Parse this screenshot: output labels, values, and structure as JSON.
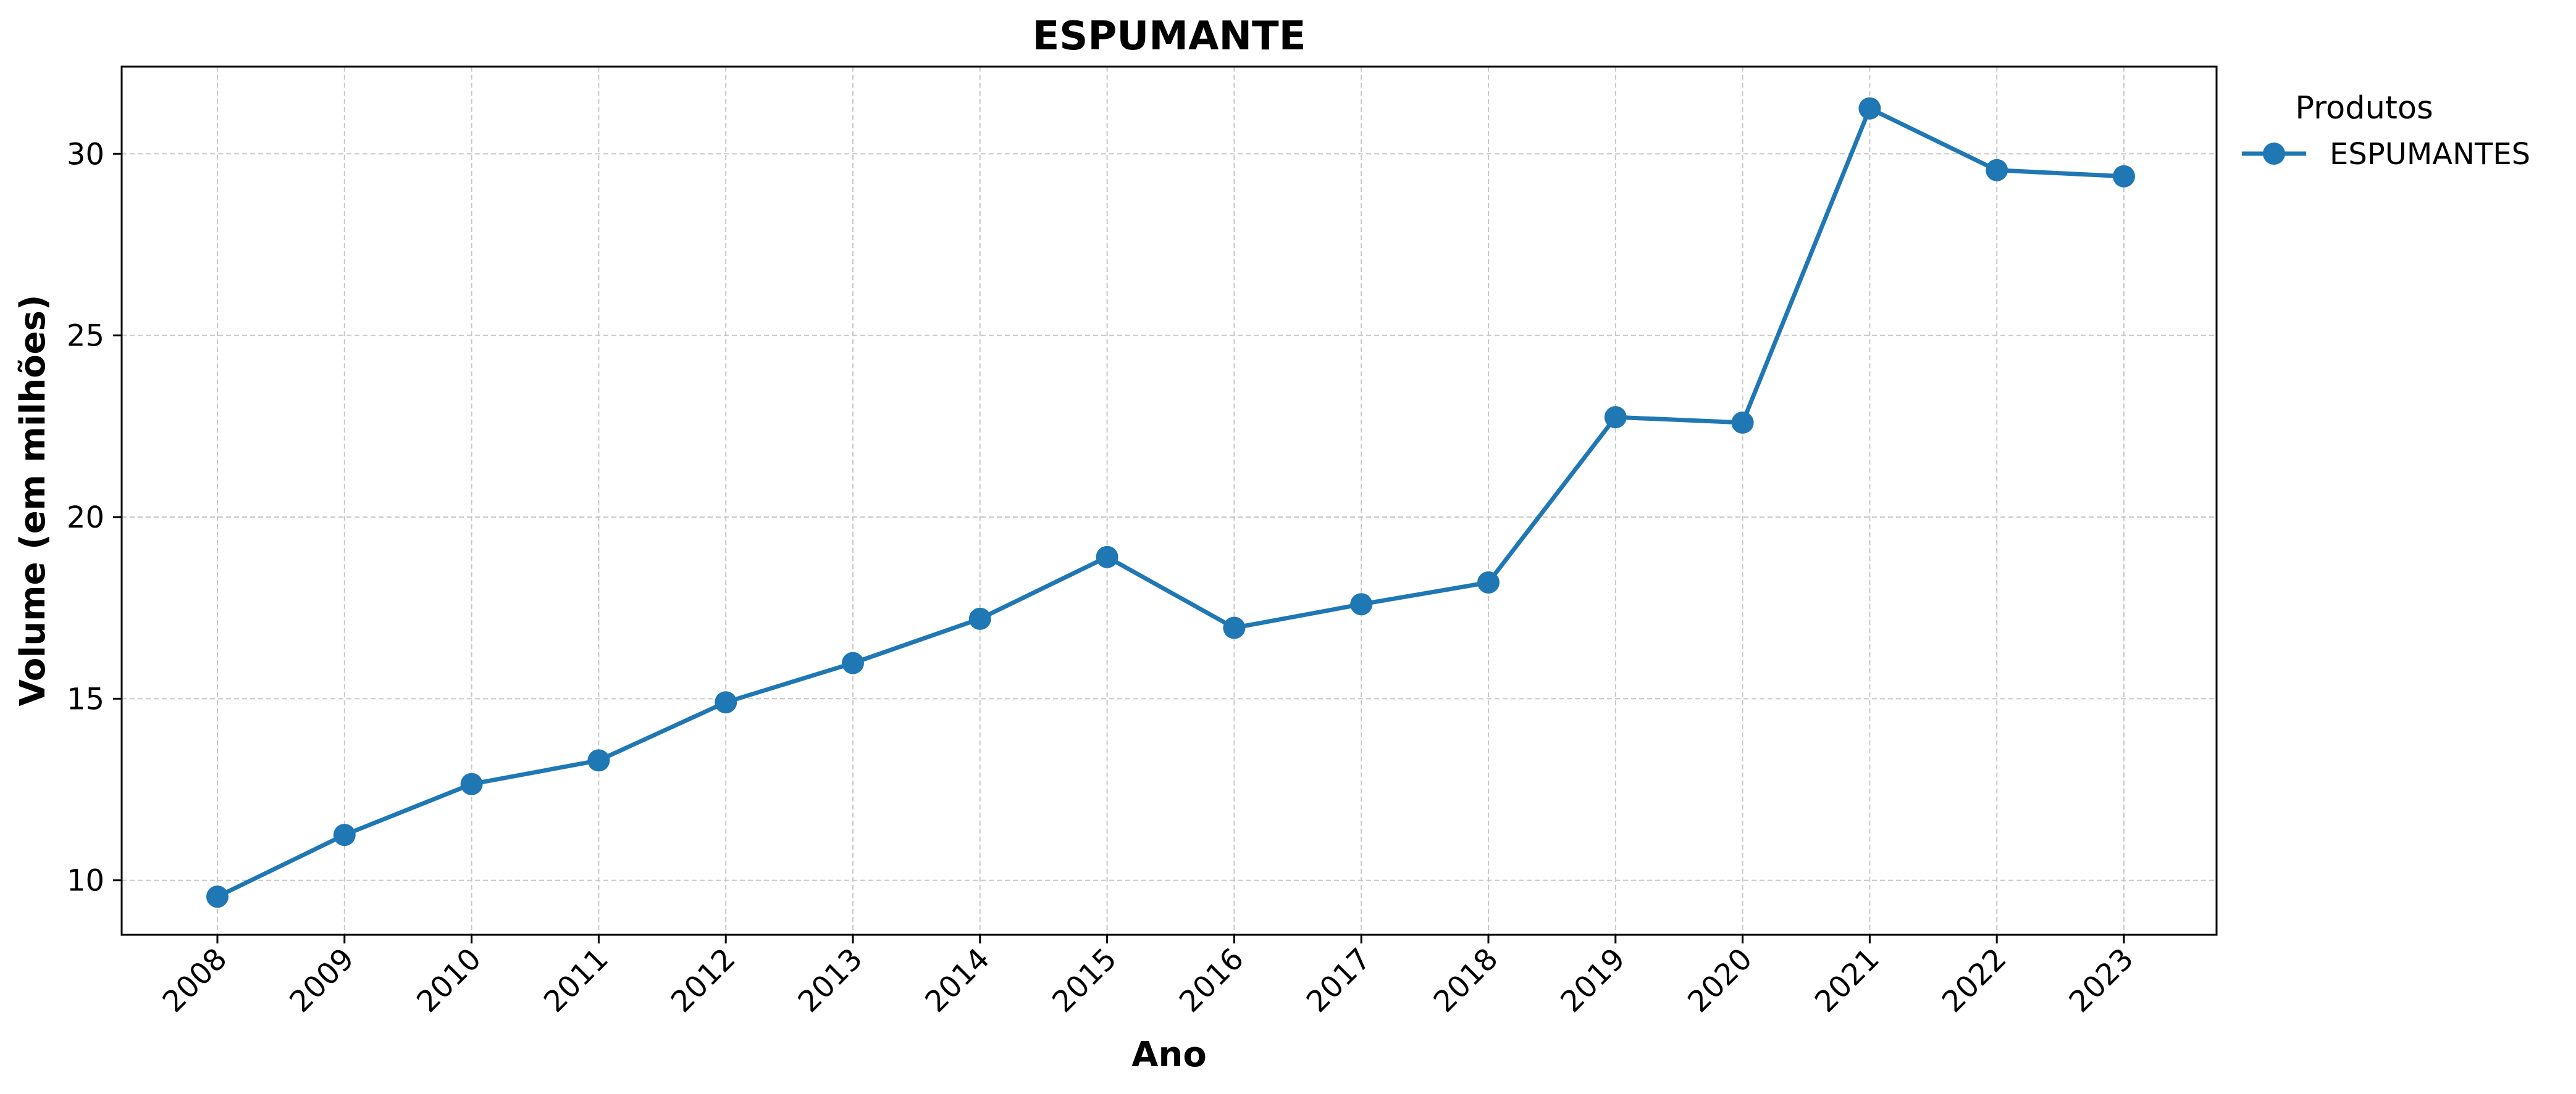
{
  "chart_data": {
    "type": "line",
    "title": "ESPUMANTE",
    "xlabel": "Ano",
    "ylabel": "Volume (em milhões)",
    "x": [
      "2008",
      "2009",
      "2010",
      "2011",
      "2012",
      "2013",
      "2014",
      "2015",
      "2016",
      "2017",
      "2018",
      "2019",
      "2020",
      "2021",
      "2022",
      "2023"
    ],
    "series": [
      {
        "name": "ESPUMANTES",
        "color": "#1f77b4",
        "marker": "circle",
        "values": [
          9.55,
          11.25,
          12.65,
          13.3,
          14.9,
          15.98,
          17.2,
          18.9,
          16.95,
          17.6,
          18.2,
          22.75,
          22.6,
          31.25,
          29.55,
          29.38
        ]
      }
    ],
    "ylim": [
      8.5,
      32.4
    ],
    "yticks": [
      10,
      15,
      20,
      25,
      30
    ],
    "grid": true,
    "legend": {
      "title": "Produtos",
      "placement": "outside-top-right"
    }
  }
}
